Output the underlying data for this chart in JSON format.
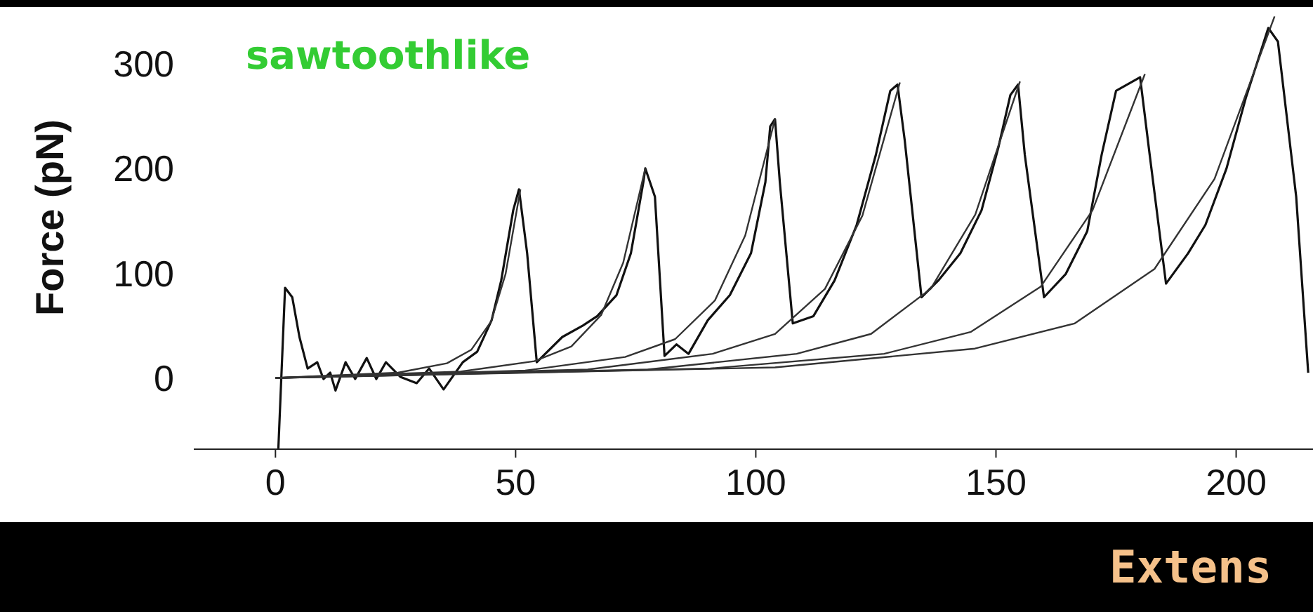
{
  "chart_data": {
    "type": "line",
    "ylabel": "Force (pN)",
    "xlabel": "Extens",
    "annotations": [
      "sawtoothlike"
    ],
    "xlim": [
      -17,
      216
    ],
    "xticks": [
      0,
      50,
      100,
      150,
      200
    ],
    "ylim": [
      -68,
      354
    ],
    "yticks": [
      0,
      100,
      200,
      300
    ],
    "series": [
      {
        "color": "#111111",
        "x": [
          0.6,
          2,
          3.5,
          5,
          6.7,
          8.7,
          10,
          11.4,
          12.5,
          14.6,
          16.6,
          19,
          21,
          23,
          26,
          29.4,
          32,
          35,
          39,
          42,
          45,
          47,
          49.5,
          50.7,
          52.4,
          54.4,
          59.7,
          64,
          67,
          71,
          74,
          76.6,
          77,
          79,
          81,
          83.5,
          86,
          90,
          94.6,
          99,
          102,
          103,
          104,
          105,
          107.7,
          112,
          116.4,
          121,
          125,
          128,
          129.5,
          131,
          134.5,
          138,
          142.6,
          147,
          150.5,
          153,
          154.6,
          156,
          160,
          164.5,
          169,
          172,
          175,
          180,
          182,
          185.4,
          190,
          193.6,
          198,
          202,
          206.7,
          208.7,
          212.5,
          215
        ],
        "values": [
          -68,
          86,
          77,
          39,
          9,
          15,
          -1,
          5,
          -12,
          15,
          -1,
          19,
          -1,
          15,
          1,
          -5,
          9,
          -11,
          15,
          25,
          55,
          93,
          160,
          180,
          119,
          15,
          39,
          50,
          59,
          79,
          119,
          187,
          200,
          173,
          21,
          32,
          23,
          55,
          79,
          119,
          187,
          240,
          247,
          187,
          52,
          59,
          93,
          146,
          213,
          274,
          280,
          227,
          77,
          93,
          119,
          160,
          220,
          270,
          280,
          213,
          77,
          99,
          140,
          213,
          274,
          287,
          213,
          90,
          119,
          146,
          200,
          267,
          334,
          321,
          173,
          5
        ]
      },
      {
        "color": "#333333",
        "x": [
          0,
          25.5,
          35.7,
          40.8,
          44.9,
          47.9,
          51
        ],
        "values": [
          0,
          5,
          14,
          27,
          54,
          99,
          180
        ]
      },
      {
        "color": "#333333",
        "x": [
          0,
          38.5,
          53.9,
          61.6,
          67.8,
          72.4,
          77
        ],
        "values": [
          0,
          6,
          16,
          30,
          60,
          110,
          200
        ]
      },
      {
        "color": "#333333",
        "x": [
          0,
          52,
          72.8,
          83.2,
          91.5,
          97.8,
          104
        ],
        "values": [
          0,
          7,
          20,
          37,
          74,
          136,
          247
        ]
      },
      {
        "color": "#333333",
        "x": [
          0,
          65,
          91,
          104,
          114.4,
          122.2,
          130
        ],
        "values": [
          0,
          8,
          23,
          42,
          85,
          155,
          282
        ]
      },
      {
        "color": "#333333",
        "x": [
          0,
          77.5,
          108.5,
          124,
          136.4,
          145.7,
          155
        ],
        "values": [
          0,
          8,
          23,
          42,
          85,
          156,
          283
        ]
      },
      {
        "color": "#333333",
        "x": [
          0,
          90.5,
          126.7,
          144.8,
          159.3,
          170.1,
          181
        ],
        "values": [
          0,
          9,
          23,
          44,
          87,
          160,
          290
        ]
      },
      {
        "color": "#333333",
        "x": [
          0,
          104,
          145.6,
          166.4,
          183,
          195.5,
          208
        ],
        "values": [
          0,
          10,
          28,
          52,
          104,
          190,
          345
        ]
      }
    ]
  }
}
